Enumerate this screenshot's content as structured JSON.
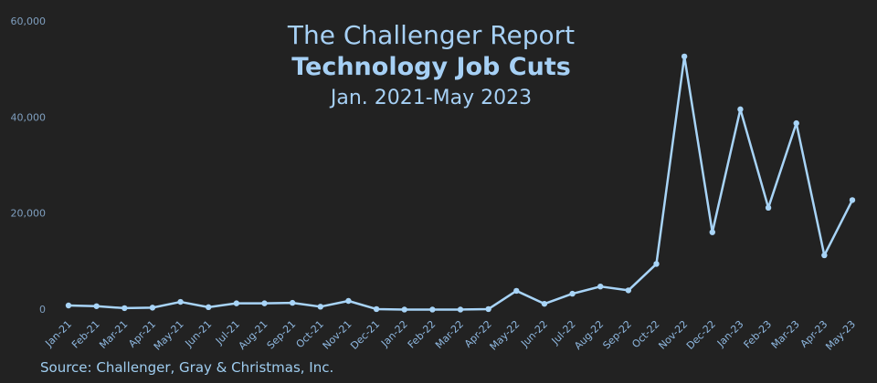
{
  "chart_data": {
    "type": "line",
    "kicker": "The Challenger Report",
    "title": "Technology Job Cuts",
    "subtitle": "Jan. 2021-May 2023",
    "source": "Source: Challenger, Gray & Christmas, Inc.",
    "categories": [
      "Jan-21",
      "Feb-21",
      "Mar-21",
      "Apr-21",
      "May-21",
      "Jun-21",
      "Jul-21",
      "Aug-21",
      "Sep-21",
      "Oct-21",
      "Nov-21",
      "Dec-21",
      "Jan-22",
      "Feb-22",
      "Mar-22",
      "Apr-22",
      "May-22",
      "Jun-22",
      "Jul-22",
      "Aug-22",
      "Sep-22",
      "Oct-22",
      "Nov-22",
      "Dec-22",
      "Jan-23",
      "Feb-23",
      "Mar-23",
      "Apr-23",
      "May-23"
    ],
    "values": [
      950,
      800,
      400,
      500,
      1700,
      600,
      1400,
      1400,
      1500,
      700,
      1900,
      200,
      100,
      100,
      100,
      200,
      4000,
      1300,
      3400,
      4900,
      4100,
      9600,
      52800,
      16200,
      41800,
      21300,
      38900,
      11400,
      22900
    ],
    "color": "#a8d4f7",
    "ylim": [
      0,
      60000
    ],
    "yticks": [
      0,
      {
        "value": 20000,
        "label": "20,000"
      },
      {
        "value": 40000,
        "label": "40,000"
      },
      {
        "value": 60000,
        "label": "60,000"
      }
    ],
    "grid": false
  }
}
